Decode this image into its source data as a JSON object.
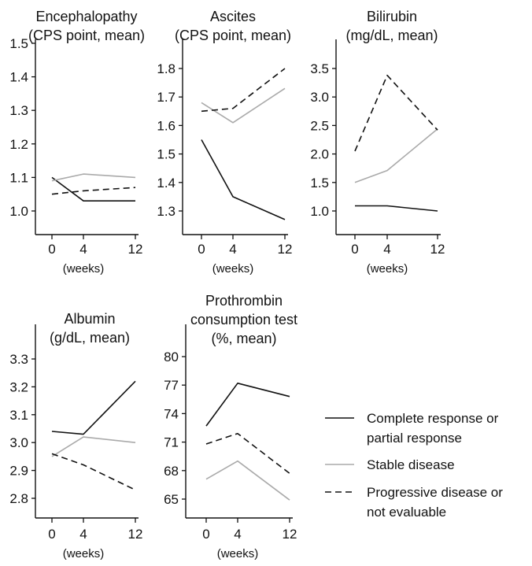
{
  "chart_data": [
    {
      "type": "line",
      "title": [
        "Encephalopathy",
        "(CPS point, mean)"
      ],
      "xlabel": "(weeks)",
      "categories": [
        "0",
        "4",
        "12"
      ],
      "ylim": [
        0.95,
        1.55
      ],
      "yticks": [
        1.0,
        1.1,
        1.2,
        1.3,
        1.4,
        1.5
      ],
      "yticklabels": [
        "1.0",
        "1.1",
        "1.2",
        "1.3",
        "1.4",
        "1.5"
      ],
      "series": [
        {
          "key": "cr_pr",
          "values": [
            1.1,
            1.03,
            1.03
          ]
        },
        {
          "key": "sd",
          "values": [
            1.09,
            1.11,
            1.1
          ]
        },
        {
          "key": "pd_ne",
          "values": [
            1.05,
            1.06,
            1.07
          ]
        }
      ]
    },
    {
      "type": "line",
      "title": [
        "Ascites",
        "(CPS point, mean)"
      ],
      "xlabel": "(weeks)",
      "categories": [
        "0",
        "4",
        "12"
      ],
      "ylim": [
        1.25,
        1.85
      ],
      "yticks": [
        1.3,
        1.4,
        1.5,
        1.6,
        1.7,
        1.8
      ],
      "yticklabels": [
        "1.3",
        "1.4",
        "1.5",
        "1.6",
        "1.7",
        "1.8"
      ],
      "series": [
        {
          "key": "cr_pr",
          "values": [
            1.55,
            1.35,
            1.27
          ]
        },
        {
          "key": "sd",
          "values": [
            1.68,
            1.61,
            1.73
          ]
        },
        {
          "key": "pd_ne",
          "values": [
            1.65,
            1.66,
            1.8
          ]
        }
      ]
    },
    {
      "type": "line",
      "title": [
        "Bilirubin",
        "(mg/dL, mean)"
      ],
      "xlabel": "(weeks)",
      "categories": [
        "0",
        "4",
        "12"
      ],
      "ylim": [
        0.75,
        3.65
      ],
      "yticks": [
        1.0,
        1.5,
        2.0,
        2.5,
        3.0,
        3.5
      ],
      "yticklabels": [
        "1.0",
        "1.5",
        "2.0",
        "2.5",
        "3.0",
        "3.5"
      ],
      "series": [
        {
          "key": "cr_pr",
          "values": [
            1.09,
            1.09,
            1.0
          ]
        },
        {
          "key": "sd",
          "values": [
            1.5,
            1.71,
            2.44
          ]
        },
        {
          "key": "pd_ne",
          "values": [
            2.05,
            3.38,
            2.42
          ]
        }
      ]
    },
    {
      "type": "line",
      "title": [
        "Albumin",
        "(g/dL, mean)"
      ],
      "xlabel": "(weeks)",
      "categories": [
        "0",
        "4",
        "12"
      ],
      "ylim": [
        2.74,
        3.33
      ],
      "yticks": [
        2.8,
        2.9,
        3.0,
        3.1,
        3.2,
        3.3
      ],
      "yticklabels": [
        "2.8",
        "2.9",
        "3.0",
        "3.1",
        "3.2",
        "3.3"
      ],
      "series": [
        {
          "key": "cr_pr",
          "values": [
            3.04,
            3.03,
            3.22
          ]
        },
        {
          "key": "sd",
          "values": [
            2.95,
            3.02,
            3.0
          ]
        },
        {
          "key": "pd_ne",
          "values": [
            2.96,
            2.92,
            2.83
          ]
        }
      ]
    },
    {
      "type": "line",
      "title": [
        "Prothrombin",
        "consumption test",
        "(%, mean)"
      ],
      "xlabel": "(weeks)",
      "categories": [
        "0",
        "4",
        "12"
      ],
      "ylim": [
        64,
        81
      ],
      "yticks": [
        65,
        68,
        71,
        74,
        77,
        80
      ],
      "yticklabels": [
        "65",
        "68",
        "71",
        "74",
        "77",
        "80"
      ],
      "series": [
        {
          "key": "cr_pr",
          "values": [
            72.7,
            77.2,
            75.8
          ]
        },
        {
          "key": "sd",
          "values": [
            67.1,
            69.0,
            64.9
          ]
        },
        {
          "key": "pd_ne",
          "values": [
            70.8,
            71.9,
            67.7
          ]
        }
      ]
    }
  ],
  "legend": {
    "placement": "right",
    "entries": [
      {
        "key": "cr_pr",
        "lines": [
          "Complete response or",
          "partial response"
        ],
        "color": "#111111",
        "dash": "solid"
      },
      {
        "key": "sd",
        "lines": [
          "Stable disease"
        ],
        "color": "#aaaaaa",
        "dash": "solid"
      },
      {
        "key": "pd_ne",
        "lines": [
          "Progressive disease or",
          "not evaluable"
        ],
        "color": "#111111",
        "dash": "dashed"
      }
    ]
  }
}
